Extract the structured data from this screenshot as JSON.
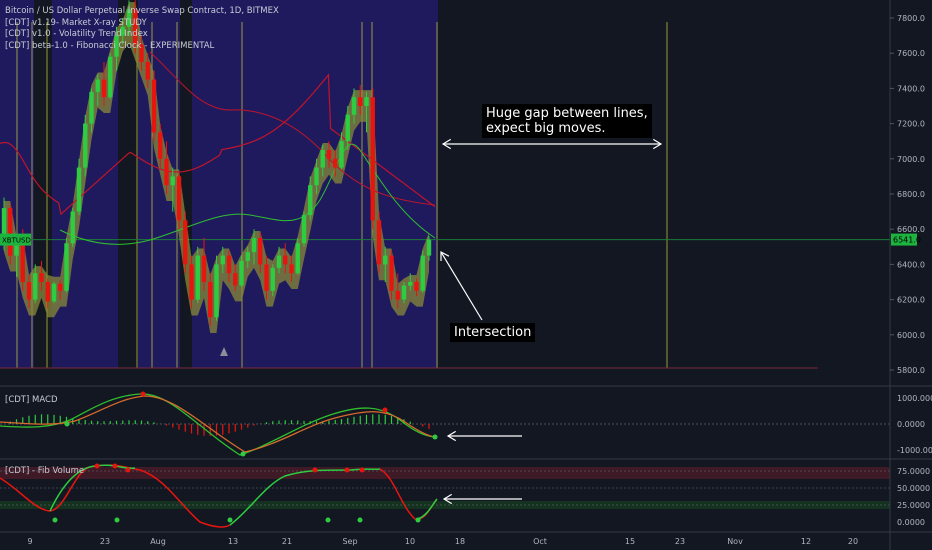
{
  "header": {
    "symbol_line": "Bitcoin / US Dollar Perpetual Inverse Swap Contract, 1D, BITMEX",
    "indicators": [
      "[CDT] v1.19- Market X-ray STUDY",
      "[CDT] v1.0 - Volatility Trend Index",
      "[CDT] beta-1.0 - Fibonacci Clock - EXPERIMENTAL"
    ]
  },
  "price_tag": {
    "symbol": "XBTUSD",
    "last": "6541.0"
  },
  "annotations": {
    "gap_note_line1": "Huge gap between lines,",
    "gap_note_line2": "expect big moves.",
    "intersection": "Intersection"
  },
  "panes": {
    "macd_title": "[CDT] MACD",
    "fib_title": "[CDT] - Fib Volume"
  },
  "colors": {
    "bg": "#131722",
    "bull": "#2ecc40",
    "bear": "#e8150f",
    "band": "#8a8a3a",
    "zone": "#1f1a5e",
    "fib_line": "#b8b83a",
    "red_ma": "#c0142a",
    "green_ma": "#2fbf2f",
    "hline": "#1d7a3a"
  },
  "chart_data": [
    {
      "type": "candlestick",
      "title": "Bitcoin / US Dollar Perpetual Inverse Swap Contract, 1D, BITMEX",
      "y_ticks": [
        "7800.0",
        "7600.0",
        "7400.0",
        "7200.0",
        "7000.0",
        "6800.0",
        "6600.0",
        "6400.0",
        "6200.0",
        "6000.0",
        "5800.0"
      ],
      "ylim": [
        5700,
        7950
      ],
      "x_ticks": [
        "9",
        "23",
        "Aug",
        "13",
        "21",
        "Sep",
        "10",
        "18",
        "Oct",
        "15",
        "23",
        "Nov",
        "12",
        "20"
      ],
      "last_price": 6541,
      "candles_ohlc": [
        [
          6560,
          6780,
          6480,
          6720
        ],
        [
          6720,
          6740,
          6400,
          6450
        ],
        [
          6450,
          6560,
          6330,
          6520
        ],
        [
          6520,
          6600,
          6250,
          6300
        ],
        [
          6300,
          6340,
          6150,
          6200
        ],
        [
          6200,
          6400,
          6180,
          6350
        ],
        [
          6350,
          6420,
          6250,
          6300
        ],
        [
          6300,
          6320,
          6150,
          6190
        ],
        [
          6190,
          6300,
          6180,
          6290
        ],
        [
          6290,
          6310,
          6200,
          6250
        ],
        [
          6250,
          6550,
          6240,
          6520
        ],
        [
          6520,
          6720,
          6500,
          6700
        ],
        [
          6700,
          7000,
          6680,
          6950
        ],
        [
          6950,
          7250,
          6900,
          7200
        ],
        [
          7200,
          7400,
          7150,
          7380
        ],
        [
          7380,
          7480,
          7300,
          7450
        ],
        [
          7450,
          7550,
          7300,
          7350
        ],
        [
          7350,
          7600,
          7340,
          7580
        ],
        [
          7580,
          7750,
          7500,
          7700
        ],
        [
          7700,
          7800,
          7650,
          7750
        ],
        [
          7750,
          7900,
          7700,
          7850
        ],
        [
          7850,
          7900,
          7600,
          7650
        ],
        [
          7650,
          7700,
          7500,
          7550
        ],
        [
          7550,
          7600,
          7400,
          7450
        ],
        [
          7450,
          7500,
          7100,
          7150
        ],
        [
          7150,
          7200,
          6950,
          7000
        ],
        [
          7000,
          7100,
          6800,
          6850
        ],
        [
          6850,
          6950,
          6700,
          6900
        ],
        [
          6900,
          6920,
          6600,
          6650
        ],
        [
          6650,
          6700,
          6350,
          6400
        ],
        [
          6400,
          6450,
          6150,
          6200
        ],
        [
          6200,
          6500,
          6180,
          6450
        ],
        [
          6450,
          6550,
          6250,
          6300
        ],
        [
          6300,
          6350,
          6050,
          6100
        ],
        [
          6100,
          6450,
          6080,
          6400
        ],
        [
          6400,
          6500,
          6350,
          6450
        ],
        [
          6450,
          6480,
          6300,
          6350
        ],
        [
          6350,
          6400,
          6250,
          6280
        ],
        [
          6280,
          6450,
          6270,
          6420
        ],
        [
          6420,
          6500,
          6380,
          6470
        ],
        [
          6470,
          6600,
          6400,
          6550
        ],
        [
          6550,
          6580,
          6350,
          6400
        ],
        [
          6400,
          6450,
          6200,
          6250
        ],
        [
          6250,
          6400,
          6220,
          6380
        ],
        [
          6380,
          6500,
          6350,
          6450
        ],
        [
          6450,
          6520,
          6350,
          6400
        ],
        [
          6400,
          6450,
          6300,
          6350
        ],
        [
          6350,
          6550,
          6340,
          6520
        ],
        [
          6520,
          6700,
          6500,
          6680
        ],
        [
          6680,
          6900,
          6650,
          6850
        ],
        [
          6850,
          7000,
          6800,
          6950
        ],
        [
          6950,
          7080,
          6900,
          7050
        ],
        [
          7050,
          7100,
          6950,
          7000
        ],
        [
          7000,
          7050,
          6900,
          6950
        ],
        [
          6950,
          7150,
          6940,
          7100
        ],
        [
          7100,
          7300,
          7050,
          7250
        ],
        [
          7250,
          7400,
          7200,
          7350
        ],
        [
          7350,
          7420,
          7250,
          7300
        ],
        [
          7300,
          7380,
          7150,
          7350
        ],
        [
          7350,
          7400,
          6600,
          6650
        ],
        [
          6650,
          6700,
          6350,
          6400
        ],
        [
          6400,
          6500,
          6300,
          6450
        ],
        [
          6450,
          6480,
          6200,
          6250
        ],
        [
          6250,
          6350,
          6150,
          6200
        ],
        [
          6200,
          6300,
          6180,
          6280
        ],
        [
          6280,
          6350,
          6250,
          6300
        ],
        [
          6300,
          6320,
          6220,
          6250
        ],
        [
          6250,
          6480,
          6240,
          6450
        ],
        [
          6450,
          6560,
          6420,
          6541
        ]
      ]
    },
    {
      "type": "line",
      "title": "[CDT] MACD",
      "y_ticks": [
        "1000.0000",
        "0.0000",
        "-1000.0000"
      ],
      "ylim": [
        -1300,
        1300
      ]
    },
    {
      "type": "line",
      "title": "[CDT] - Fib Volume",
      "y_ticks": [
        "75.0000",
        "50.0000",
        "25.0000",
        "0.0000"
      ],
      "ylim": [
        -5,
        90
      ]
    }
  ]
}
